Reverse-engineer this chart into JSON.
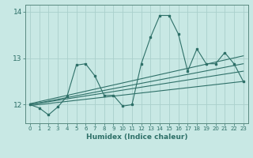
{
  "xlabel": "Humidex (Indice chaleur)",
  "bg_color": "#c8e8e4",
  "line_color": "#2e7068",
  "grid_color": "#aad0cc",
  "x_data": [
    0,
    1,
    2,
    3,
    4,
    5,
    6,
    7,
    8,
    9,
    10,
    11,
    12,
    13,
    14,
    15,
    16,
    17,
    18,
    19,
    20,
    21,
    22,
    23
  ],
  "y_data": [
    12.0,
    11.93,
    11.78,
    11.95,
    12.18,
    12.85,
    12.88,
    12.62,
    12.2,
    12.2,
    11.97,
    12.0,
    12.88,
    13.45,
    13.92,
    13.92,
    13.52,
    12.72,
    13.2,
    12.88,
    12.88,
    13.12,
    12.88,
    12.5
  ],
  "ylim": [
    11.6,
    14.15
  ],
  "xlim": [
    -0.5,
    23.5
  ],
  "yticks": [
    12,
    13,
    14
  ],
  "xticks": [
    0,
    1,
    2,
    3,
    4,
    5,
    6,
    7,
    8,
    9,
    10,
    11,
    12,
    13,
    14,
    15,
    16,
    17,
    18,
    19,
    20,
    21,
    22,
    23
  ],
  "regression_lines": [
    {
      "x_start": 0,
      "x_end": 23,
      "y_start": 11.98,
      "y_end": 12.5
    },
    {
      "x_start": 0,
      "x_end": 23,
      "y_start": 12.0,
      "y_end": 12.72
    },
    {
      "x_start": 0,
      "x_end": 23,
      "y_start": 12.0,
      "y_end": 12.88
    },
    {
      "x_start": 0,
      "x_end": 23,
      "y_start": 12.02,
      "y_end": 13.05
    }
  ]
}
